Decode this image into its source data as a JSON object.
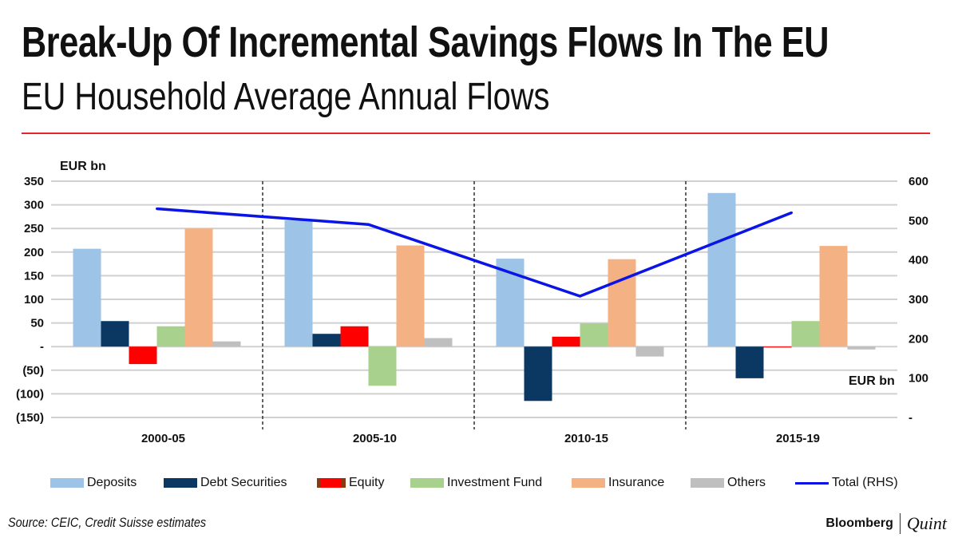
{
  "chart_data": {
    "type": "bar",
    "title": "Break-Up Of Incremental Savings Flows In The EU",
    "subtitle": "EU Household Average Annual Flows",
    "ylabel": "EUR bn",
    "y2label": "EUR bn",
    "ylim": [
      -150,
      350
    ],
    "y2lim": [
      0,
      600
    ],
    "yticks": [
      "(150)",
      "(100)",
      "(50)",
      "-",
      "50",
      "100",
      "150",
      "200",
      "250",
      "300",
      "350"
    ],
    "y2ticks": [
      "-",
      "100",
      "200",
      "300",
      "400",
      "500",
      "600"
    ],
    "grid": true,
    "legend_position": "bottom",
    "categories": [
      "2000-05",
      "2005-10",
      "2010-15",
      "2015-19"
    ],
    "series": [
      {
        "name": "Deposits",
        "type": "bar",
        "color": "#9dc3e6",
        "values": [
          207,
          267,
          186,
          325
        ]
      },
      {
        "name": "Debt Securities",
        "type": "bar",
        "color": "#0b3763",
        "values": [
          54,
          27,
          -115,
          -67
        ]
      },
      {
        "name": "Equity",
        "type": "bar",
        "color": "#ff0000",
        "values": [
          -37,
          43,
          21,
          -2
        ]
      },
      {
        "name": "Investment Fund",
        "type": "bar",
        "color": "#a9d18e",
        "values": [
          43,
          -83,
          49,
          54
        ]
      },
      {
        "name": "Insurance",
        "type": "bar",
        "color": "#f4b183",
        "values": [
          250,
          214,
          185,
          213
        ]
      },
      {
        "name": "Others",
        "type": "bar",
        "color": "#bfbfbf",
        "values": [
          11,
          18,
          -21,
          -6
        ]
      },
      {
        "name": "Total (RHS)",
        "type": "line",
        "axis": "right",
        "color": "#0a14e6",
        "values": [
          530,
          490,
          308,
          520
        ]
      }
    ]
  },
  "source": "Source: CEIC, Credit Suisse estimates",
  "logo": {
    "brand": "Bloomberg",
    "sub": "Quint"
  }
}
